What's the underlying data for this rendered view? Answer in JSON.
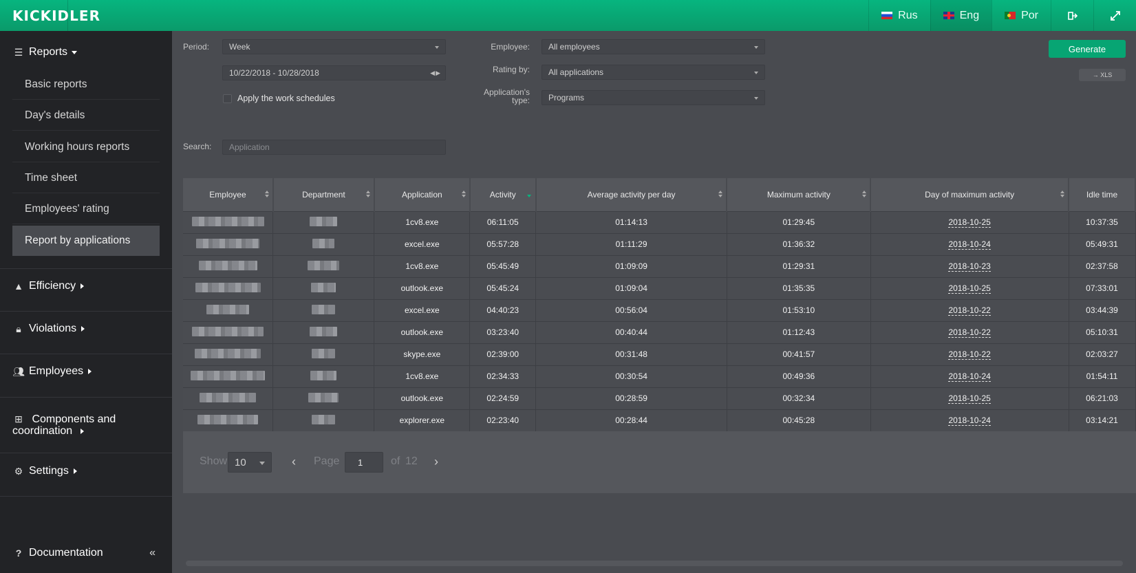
{
  "header": {
    "logo": "KICKIDLER",
    "languages": [
      {
        "code": "ru",
        "label": "Rus"
      },
      {
        "code": "en",
        "label": "Eng"
      },
      {
        "code": "pt",
        "label": "Por"
      }
    ],
    "logout_icon": "logout-icon",
    "fullscreen_icon": "fullscreen-icon"
  },
  "sidebar": {
    "reports": {
      "label": "Reports",
      "items": [
        "Basic reports",
        "Day's details",
        "Working hours reports",
        "Time sheet",
        "Employees' rating",
        "Report by applications"
      ],
      "active": "Report by applications"
    },
    "sections": [
      {
        "label": "Efficiency",
        "icon": "area-chart-icon"
      },
      {
        "label": "Violations",
        "icon": "lock-icon"
      },
      {
        "label": "Employees",
        "icon": "users-icon"
      },
      {
        "label": "Components and coordination",
        "icon": "sitemap-icon"
      },
      {
        "label": "Settings",
        "icon": "gears-icon"
      }
    ],
    "documentation": "Documentation"
  },
  "filters": {
    "period_label": "Period:",
    "period_value": "Week",
    "date_range": "10/22/2018 - 10/28/2018",
    "apply_schedules_label": "Apply the work schedules",
    "employee_label": "Employee:",
    "employee_value": "All employees",
    "rating_label": "Rating by:",
    "rating_value": "All applications",
    "apptype_label": "Application's type:",
    "apptype_value": "Programs",
    "search_label": "Search:",
    "search_placeholder": "Application",
    "generate": "Generate",
    "xls": "→ XLS"
  },
  "table": {
    "columns": [
      "Employee",
      "Department",
      "Application",
      "Activity",
      "Average activity per day",
      "Maximum activity",
      "Day of maximum activity",
      "Idle time"
    ],
    "rows": [
      {
        "app": "1cv8.exe",
        "activity": "06:11:05",
        "avg": "01:14:13",
        "max": "01:29:45",
        "day": "2018-10-25",
        "idle": "10:37:35"
      },
      {
        "app": "excel.exe",
        "activity": "05:57:28",
        "avg": "01:11:29",
        "max": "01:36:32",
        "day": "2018-10-24",
        "idle": "05:49:31"
      },
      {
        "app": "1cv8.exe",
        "activity": "05:45:49",
        "avg": "01:09:09",
        "max": "01:29:31",
        "day": "2018-10-23",
        "idle": "02:37:58"
      },
      {
        "app": "outlook.exe",
        "activity": "05:45:24",
        "avg": "01:09:04",
        "max": "01:35:35",
        "day": "2018-10-25",
        "idle": "07:33:01"
      },
      {
        "app": "excel.exe",
        "activity": "04:40:23",
        "avg": "00:56:04",
        "max": "01:53:10",
        "day": "2018-10-22",
        "idle": "03:44:39"
      },
      {
        "app": "outlook.exe",
        "activity": "03:23:40",
        "avg": "00:40:44",
        "max": "01:12:43",
        "day": "2018-10-22",
        "idle": "05:10:31"
      },
      {
        "app": "skype.exe",
        "activity": "02:39:00",
        "avg": "00:31:48",
        "max": "00:41:57",
        "day": "2018-10-22",
        "idle": "02:03:27"
      },
      {
        "app": "1cv8.exe",
        "activity": "02:34:33",
        "avg": "00:30:54",
        "max": "00:49:36",
        "day": "2018-10-24",
        "idle": "01:54:11"
      },
      {
        "app": "outlook.exe",
        "activity": "02:24:59",
        "avg": "00:28:59",
        "max": "00:32:34",
        "day": "2018-10-25",
        "idle": "06:21:03"
      },
      {
        "app": "explorer.exe",
        "activity": "02:23:40",
        "avg": "00:28:44",
        "max": "00:45:28",
        "day": "2018-10-24",
        "idle": "03:14:21"
      }
    ]
  },
  "pagination": {
    "show_label": "Show",
    "show_value": "10",
    "page_label": "Page",
    "page_value": "1",
    "of_label": "of",
    "total_pages": "12",
    "prev": "‹",
    "next": "›"
  }
}
